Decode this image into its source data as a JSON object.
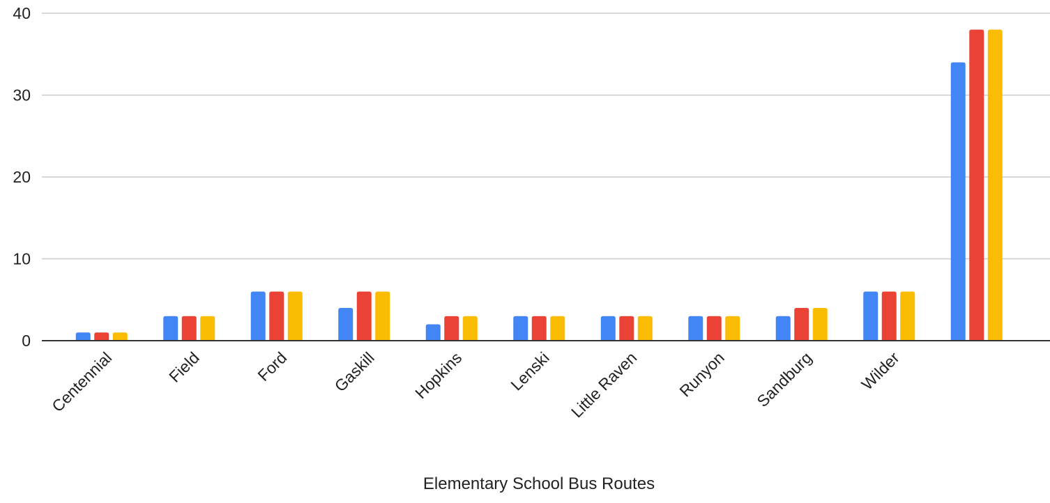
{
  "chart_data": {
    "type": "bar",
    "title": "",
    "xlabel": "Elementary School Bus Routes",
    "ylabel": "",
    "ylim": [
      0,
      40
    ],
    "yticks": [
      0,
      10,
      20,
      30,
      40
    ],
    "grid": true,
    "legend": "none",
    "categories": [
      "Centennial",
      "Field",
      "Ford",
      "Gaskill",
      "Hopkins",
      "Lenski",
      "Little Raven",
      "Runyon",
      "Sandburg",
      "Wilder",
      ""
    ],
    "series": [
      {
        "color": "#4285f4",
        "values": [
          1,
          3,
          6,
          4,
          2,
          3,
          3,
          3,
          3,
          6,
          34
        ]
      },
      {
        "color": "#ea4335",
        "values": [
          1,
          3,
          6,
          6,
          3,
          3,
          3,
          3,
          4,
          6,
          38
        ]
      },
      {
        "color": "#fbbc04",
        "values": [
          1,
          3,
          6,
          6,
          3,
          3,
          3,
          3,
          4,
          6,
          38
        ]
      }
    ]
  }
}
